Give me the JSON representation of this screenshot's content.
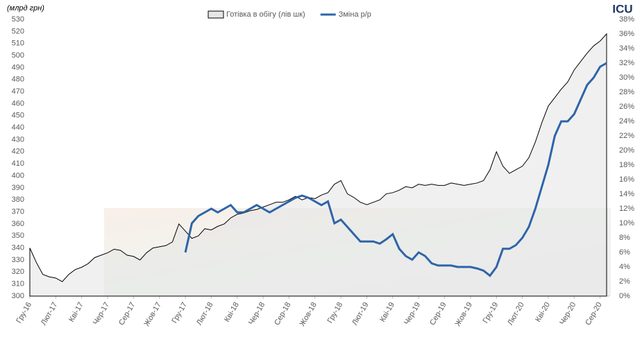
{
  "logo": "ICU",
  "chart_data": {
    "type": "area-line",
    "subtitle": "(млрд грн)",
    "categories": [
      "Гру-16",
      null,
      null,
      null,
      "Лют-17",
      null,
      null,
      null,
      "Кві-17",
      null,
      null,
      null,
      "Чер-17",
      null,
      null,
      null,
      "Сер-17",
      null,
      null,
      null,
      "Жов-17",
      null,
      null,
      null,
      "Гру-17",
      null,
      null,
      null,
      "Лют-18",
      null,
      null,
      null,
      "Кві-18",
      null,
      null,
      null,
      "Чер-18",
      null,
      null,
      null,
      "Сер-18",
      null,
      null,
      null,
      "Жов-18",
      null,
      null,
      null,
      "Гру-18",
      null,
      null,
      null,
      "Лют-19",
      null,
      null,
      null,
      "Кві-19",
      null,
      null,
      null,
      "Чер-19",
      null,
      null,
      null,
      "Сер-19",
      null,
      null,
      null,
      "Жов-19",
      null,
      null,
      null,
      "Гру-19",
      null,
      null,
      null,
      "Лют-20",
      null,
      null,
      null,
      "Кві-20",
      null,
      null,
      null,
      "Чер-20",
      null,
      null,
      null,
      "Сер-20",
      null
    ],
    "series": [
      {
        "name": "Готівка в обігу (лів шк)",
        "type": "area",
        "color": "#e6e6e6",
        "stroke": "#000000",
        "values": [
          340,
          328,
          318,
          316,
          315,
          312,
          318,
          322,
          324,
          327,
          332,
          334,
          336,
          339,
          338,
          334,
          333,
          330,
          336,
          340,
          341,
          342,
          345,
          360,
          354,
          348,
          350,
          356,
          355,
          358,
          360,
          365,
          368,
          369,
          371,
          372,
          374,
          376,
          378,
          378,
          380,
          383,
          380,
          382,
          381,
          384,
          386,
          393,
          396,
          385,
          382,
          378,
          376,
          378,
          380,
          385,
          386,
          388,
          391,
          390,
          393,
          392,
          393,
          392,
          392,
          394,
          393,
          392,
          393,
          394,
          396,
          405,
          420,
          408,
          402,
          405,
          408,
          415,
          428,
          444,
          458,
          465,
          472,
          478,
          488,
          495,
          502,
          508,
          512,
          518
        ]
      },
      {
        "name": "Зміна р/р",
        "type": "line",
        "axis": "y2",
        "color": "#2e64a9",
        "values": [
          null,
          null,
          null,
          null,
          null,
          null,
          null,
          null,
          null,
          null,
          null,
          null,
          null,
          null,
          null,
          null,
          null,
          null,
          null,
          null,
          null,
          null,
          null,
          null,
          6,
          10,
          11,
          11.5,
          12,
          11.5,
          12,
          12.5,
          11.5,
          11.5,
          12,
          12.5,
          12,
          11.5,
          12,
          12.5,
          13,
          13.5,
          13.8,
          13.5,
          13,
          12.5,
          13,
          10,
          10.5,
          9.5,
          8.5,
          7.5,
          7.5,
          7.5,
          7.2,
          7.8,
          8.5,
          6.5,
          5.5,
          5,
          6,
          5.5,
          4.5,
          4.2,
          4.2,
          4.2,
          4,
          4,
          4,
          3.8,
          3.5,
          2.8,
          4,
          6.5,
          6.5,
          7,
          8,
          9.5,
          12,
          15,
          18,
          22,
          24,
          24,
          25,
          27,
          29,
          30,
          31.5,
          32
        ]
      }
    ],
    "ylim": [
      300,
      530
    ],
    "yticks": [
      300,
      310,
      320,
      330,
      340,
      350,
      360,
      370,
      380,
      390,
      400,
      410,
      420,
      430,
      440,
      450,
      460,
      470,
      480,
      490,
      500,
      510,
      520,
      530
    ],
    "y2lim": [
      0,
      38
    ],
    "y2ticks": [
      {
        "value": 0,
        "label": "0%"
      },
      {
        "value": 2,
        "label": "2%"
      },
      {
        "value": 4,
        "label": "4%"
      },
      {
        "value": 6,
        "label": "6%"
      },
      {
        "value": 8,
        "label": "8%"
      },
      {
        "value": 10,
        "label": "10%"
      },
      {
        "value": 12,
        "label": "12%"
      },
      {
        "value": 14,
        "label": "14%"
      },
      {
        "value": 16,
        "label": "16%"
      },
      {
        "value": 18,
        "label": "18%"
      },
      {
        "value": 20,
        "label": "20%"
      },
      {
        "value": 22,
        "label": "22%"
      },
      {
        "value": 24,
        "label": "24%"
      },
      {
        "value": 26,
        "label": "26%"
      },
      {
        "value": 28,
        "label": "28%"
      },
      {
        "value": 30,
        "label": "30%"
      },
      {
        "value": 32,
        "label": "32%"
      },
      {
        "value": 34,
        "label": "34%"
      },
      {
        "value": 36,
        "label": "36%"
      },
      {
        "value": 38,
        "label": "38%"
      }
    ],
    "legend": "top"
  }
}
